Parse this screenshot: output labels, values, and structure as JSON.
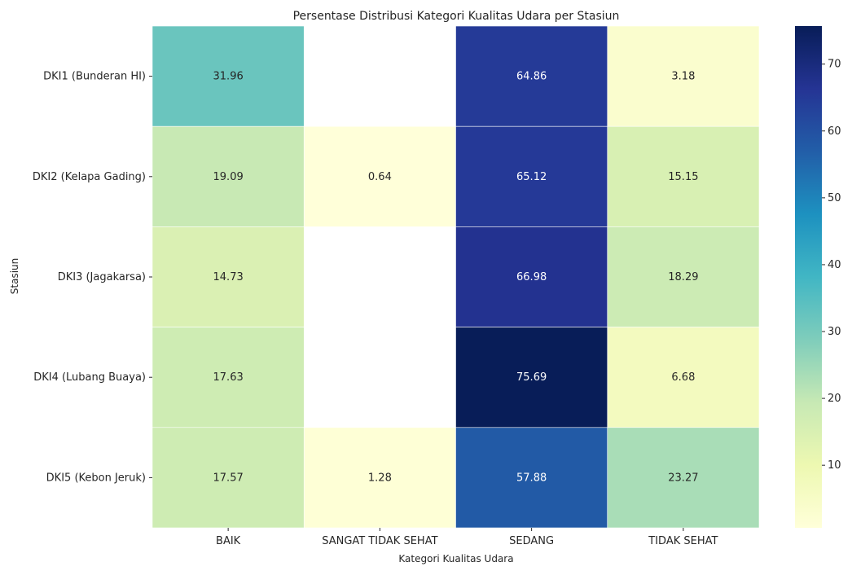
{
  "chart_data": {
    "type": "heatmap",
    "title": "Persentase Distribusi Kategori Kualitas Udara per Stasiun",
    "xlabel": "Kategori Kualitas Udara",
    "ylabel": "Stasiun",
    "columns": [
      "BAIK",
      "SANGAT TIDAK SEHAT",
      "SEDANG",
      "TIDAK SEHAT"
    ],
    "rows": [
      "DKI1 (Bunderan HI)",
      "DKI2 (Kelapa Gading)",
      "DKI3 (Jagakarsa)",
      "DKI4 (Lubang Buaya)",
      "DKI5 (Kebon Jeruk)"
    ],
    "values": [
      [
        31.96,
        null,
        64.86,
        3.18
      ],
      [
        19.09,
        0.64,
        65.12,
        15.15
      ],
      [
        14.73,
        null,
        66.98,
        18.29
      ],
      [
        17.63,
        null,
        75.69,
        6.68
      ],
      [
        17.57,
        1.28,
        57.88,
        23.27
      ]
    ],
    "colorbar": {
      "colormap": "YlGnBu",
      "range": [
        0.64,
        75.69
      ],
      "ticks": [
        10,
        20,
        30,
        40,
        50,
        60,
        70
      ]
    },
    "grid": false
  }
}
